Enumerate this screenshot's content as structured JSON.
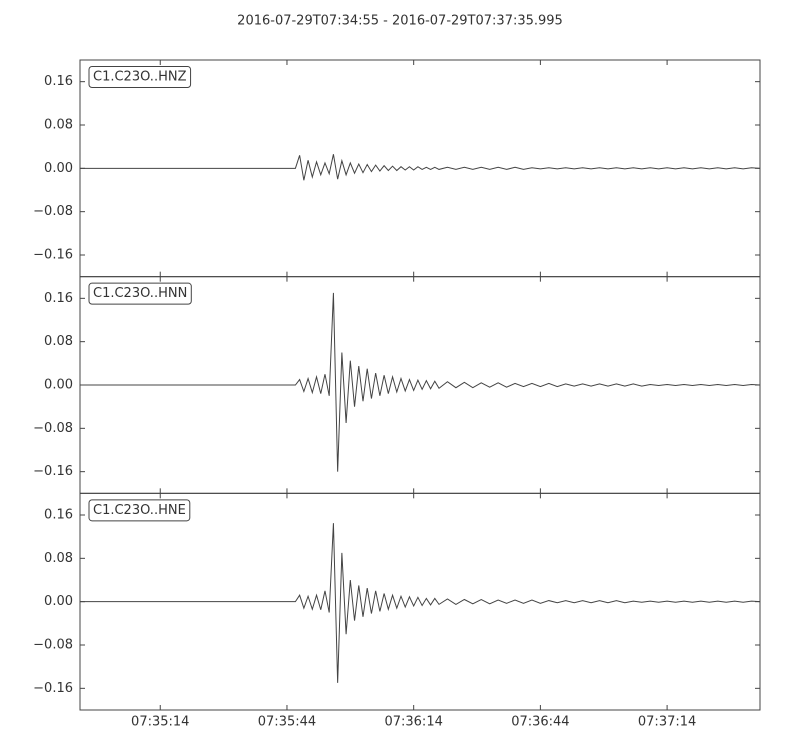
{
  "title": "2016-07-29T07:34:55  -  2016-07-29T07:37:35.995",
  "chart_data": [
    {
      "type": "line",
      "title": "C1.C23O..HNZ",
      "color": "#444444",
      "xlim": [
        "07:34:55",
        "07:37:35.995"
      ],
      "xticks": [
        "07:35:14",
        "07:35:44",
        "07:36:14",
        "07:36:44",
        "07:37:14"
      ],
      "ylim": [
        -0.2,
        0.2
      ],
      "yticks": [
        {
          "value": -0.16,
          "label": "−0.16"
        },
        {
          "value": -0.08,
          "label": "−0.08"
        },
        {
          "value": 0,
          "label": "0.00"
        },
        {
          "value": 0.08,
          "label": "0.08"
        },
        {
          "value": 0.16,
          "label": "0.16"
        }
      ],
      "x": [
        "07:34:55",
        "07:35:46",
        "07:35:47",
        "07:35:48",
        "07:35:49",
        "07:35:50",
        "07:35:51",
        "07:35:52",
        "07:35:53",
        "07:35:54",
        "07:35:55",
        "07:35:56",
        "07:35:57",
        "07:35:58",
        "07:35:59",
        "07:36:00",
        "07:36:01",
        "07:36:02",
        "07:36:03",
        "07:36:04",
        "07:36:05",
        "07:36:06",
        "07:36:07",
        "07:36:08",
        "07:36:09",
        "07:36:10",
        "07:36:11",
        "07:36:12",
        "07:36:13",
        "07:36:14",
        "07:36:15",
        "07:36:16",
        "07:36:17",
        "07:36:18",
        "07:36:19",
        "07:36:20",
        "07:36:22",
        "07:36:24",
        "07:36:26",
        "07:36:28",
        "07:36:30",
        "07:36:32",
        "07:36:34",
        "07:36:36",
        "07:36:38",
        "07:36:40",
        "07:36:42",
        "07:36:44",
        "07:36:46",
        "07:36:48",
        "07:36:50",
        "07:36:52",
        "07:36:54",
        "07:36:56",
        "07:36:58",
        "07:37:00",
        "07:37:02",
        "07:37:04",
        "07:37:06",
        "07:37:08",
        "07:37:10",
        "07:37:12",
        "07:37:14",
        "07:37:16",
        "07:37:18",
        "07:37:20",
        "07:37:22",
        "07:37:24",
        "07:37:26",
        "07:37:28",
        "07:37:30",
        "07:37:32",
        "07:37:34",
        "07:37:35.995"
      ],
      "values": [
        0,
        0,
        0.024,
        -0.022,
        0.015,
        -0.016,
        0.012,
        -0.012,
        0.01,
        -0.01,
        0.026,
        -0.02,
        0.014,
        -0.012,
        0.01,
        -0.009,
        0.008,
        -0.008,
        0.007,
        -0.006,
        0.006,
        -0.005,
        0.005,
        -0.004,
        0.004,
        -0.004,
        0.003,
        -0.003,
        0.003,
        -0.003,
        0.003,
        -0.002,
        0.002,
        -0.002,
        0.002,
        -0.002,
        0.002,
        -0.002,
        0.002,
        -0.002,
        0.002,
        -0.002,
        0.002,
        -0.002,
        0.002,
        -0.002,
        0.001,
        -0.001,
        0.001,
        -0.001,
        0.001,
        -0.001,
        0.001,
        -0.001,
        0.001,
        -0.001,
        0.001,
        -0.001,
        0.001,
        -0.001,
        0.001,
        -0.001,
        0.001,
        -0.001,
        0.001,
        -0.001,
        0.001,
        -0.001,
        0.001,
        -0.001,
        0.001,
        -0.001,
        0.001,
        0
      ]
    },
    {
      "type": "line",
      "title": "C1.C23O..HNN",
      "color": "#444444",
      "xlim": [
        "07:34:55",
        "07:37:35.995"
      ],
      "xticks": [
        "07:35:14",
        "07:35:44",
        "07:36:14",
        "07:36:44",
        "07:37:14"
      ],
      "ylim": [
        -0.2,
        0.2
      ],
      "yticks": [
        {
          "value": -0.16,
          "label": "−0.16"
        },
        {
          "value": -0.08,
          "label": "−0.08"
        },
        {
          "value": 0,
          "label": "0.00"
        },
        {
          "value": 0.08,
          "label": "0.08"
        },
        {
          "value": 0.16,
          "label": "0.16"
        }
      ],
      "x": [
        "07:34:55",
        "07:35:46",
        "07:35:47",
        "07:35:48",
        "07:35:49",
        "07:35:50",
        "07:35:51",
        "07:35:52",
        "07:35:53",
        "07:35:54",
        "07:35:55",
        "07:35:56",
        "07:35:57",
        "07:35:58",
        "07:35:59",
        "07:36:00",
        "07:36:01",
        "07:36:02",
        "07:36:03",
        "07:36:04",
        "07:36:05",
        "07:36:06",
        "07:36:07",
        "07:36:08",
        "07:36:09",
        "07:36:10",
        "07:36:11",
        "07:36:12",
        "07:36:13",
        "07:36:14",
        "07:36:15",
        "07:36:16",
        "07:36:17",
        "07:36:18",
        "07:36:19",
        "07:36:20",
        "07:36:22",
        "07:36:24",
        "07:36:26",
        "07:36:28",
        "07:36:30",
        "07:36:32",
        "07:36:34",
        "07:36:36",
        "07:36:38",
        "07:36:40",
        "07:36:42",
        "07:36:44",
        "07:36:46",
        "07:36:48",
        "07:36:50",
        "07:36:52",
        "07:36:54",
        "07:36:56",
        "07:36:58",
        "07:37:00",
        "07:37:02",
        "07:37:04",
        "07:37:06",
        "07:37:08",
        "07:37:10",
        "07:37:12",
        "07:37:14",
        "07:37:16",
        "07:37:18",
        "07:37:20",
        "07:37:22",
        "07:37:24",
        "07:37:26",
        "07:37:28",
        "07:37:30",
        "07:37:32",
        "07:37:34",
        "07:37:35.995"
      ],
      "values": [
        0,
        0,
        0.01,
        -0.012,
        0.012,
        -0.014,
        0.015,
        -0.016,
        0.02,
        -0.02,
        0.17,
        -0.16,
        0.06,
        -0.07,
        0.045,
        -0.04,
        0.035,
        -0.03,
        0.03,
        -0.025,
        0.022,
        -0.02,
        0.018,
        -0.016,
        0.015,
        -0.013,
        0.012,
        -0.011,
        0.01,
        -0.01,
        0.009,
        -0.008,
        0.008,
        -0.007,
        0.007,
        -0.006,
        0.006,
        -0.005,
        0.005,
        -0.005,
        0.004,
        -0.004,
        0.004,
        -0.004,
        0.003,
        -0.003,
        0.003,
        -0.003,
        0.003,
        -0.003,
        0.002,
        -0.002,
        0.002,
        -0.002,
        0.002,
        -0.002,
        0.002,
        -0.002,
        0.002,
        -0.002,
        0.001,
        -0.001,
        0.001,
        -0.001,
        0.001,
        -0.001,
        0.001,
        -0.001,
        0.001,
        -0.001,
        0.001,
        -0.001,
        0.001,
        0
      ]
    },
    {
      "type": "line",
      "title": "C1.C23O..HNE",
      "color": "#444444",
      "xlim": [
        "07:34:55",
        "07:37:35.995"
      ],
      "xticks": [
        "07:35:14",
        "07:35:44",
        "07:36:14",
        "07:36:44",
        "07:37:14"
      ],
      "ylim": [
        -0.2,
        0.2
      ],
      "yticks": [
        {
          "value": -0.16,
          "label": "−0.16"
        },
        {
          "value": -0.08,
          "label": "−0.08"
        },
        {
          "value": 0,
          "label": "0.00"
        },
        {
          "value": 0.08,
          "label": "0.08"
        },
        {
          "value": 0.16,
          "label": "0.16"
        }
      ],
      "x": [
        "07:34:55",
        "07:35:46",
        "07:35:47",
        "07:35:48",
        "07:35:49",
        "07:35:50",
        "07:35:51",
        "07:35:52",
        "07:35:53",
        "07:35:54",
        "07:35:55",
        "07:35:56",
        "07:35:57",
        "07:35:58",
        "07:35:59",
        "07:36:00",
        "07:36:01",
        "07:36:02",
        "07:36:03",
        "07:36:04",
        "07:36:05",
        "07:36:06",
        "07:36:07",
        "07:36:08",
        "07:36:09",
        "07:36:10",
        "07:36:11",
        "07:36:12",
        "07:36:13",
        "07:36:14",
        "07:36:15",
        "07:36:16",
        "07:36:17",
        "07:36:18",
        "07:36:19",
        "07:36:20",
        "07:36:22",
        "07:36:24",
        "07:36:26",
        "07:36:28",
        "07:36:30",
        "07:36:32",
        "07:36:34",
        "07:36:36",
        "07:36:38",
        "07:36:40",
        "07:36:42",
        "07:36:44",
        "07:36:46",
        "07:36:48",
        "07:36:50",
        "07:36:52",
        "07:36:54",
        "07:36:56",
        "07:36:58",
        "07:37:00",
        "07:37:02",
        "07:37:04",
        "07:37:06",
        "07:37:08",
        "07:37:10",
        "07:37:12",
        "07:37:14",
        "07:37:16",
        "07:37:18",
        "07:37:20",
        "07:37:22",
        "07:37:24",
        "07:37:26",
        "07:37:28",
        "07:37:30",
        "07:37:32",
        "07:37:34",
        "07:37:35.995"
      ],
      "values": [
        0,
        0,
        0.012,
        -0.012,
        0.01,
        -0.014,
        0.012,
        -0.015,
        0.02,
        -0.02,
        0.145,
        -0.15,
        0.09,
        -0.06,
        0.04,
        -0.035,
        0.03,
        -0.028,
        0.025,
        -0.022,
        0.02,
        -0.018,
        0.015,
        -0.014,
        0.012,
        -0.012,
        0.01,
        -0.01,
        0.009,
        -0.008,
        0.008,
        -0.007,
        0.006,
        -0.006,
        0.006,
        -0.005,
        0.005,
        -0.005,
        0.004,
        -0.004,
        0.004,
        -0.004,
        0.003,
        -0.003,
        0.003,
        -0.003,
        0.003,
        -0.003,
        0.002,
        -0.002,
        0.002,
        -0.002,
        0.002,
        -0.002,
        0.002,
        -0.002,
        0.002,
        -0.002,
        0.001,
        -0.001,
        0.001,
        -0.001,
        0.001,
        -0.001,
        0.001,
        -0.001,
        0.001,
        -0.001,
        0.001,
        -0.001,
        0.001,
        -0.001,
        0.001,
        0
      ]
    }
  ]
}
